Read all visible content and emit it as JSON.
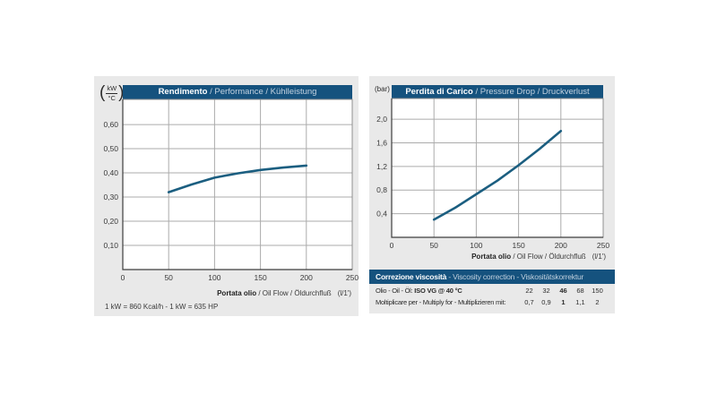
{
  "colors": {
    "accent_blue": "#15527e",
    "curve": "#1b5e80",
    "panel_bg": "#e9e9e9",
    "grid": "#ababab",
    "axis": "#3d3d3d",
    "frame": "#909090",
    "title_secondary": "#c3d2e0"
  },
  "left_panel": {
    "y_unit": {
      "open": "(",
      "num": "kW",
      "den": "°C",
      "close": ")"
    },
    "title_bold": "Rendimento",
    "title_rest": " / Performance / Kühlleistung",
    "xlabel_bold": "Portata olio",
    "xlabel_rest": " / Oil Flow / Öldurchfluß",
    "xlabel_unit": "(l/1')",
    "footnote": "1 kW = 860 Kcal/h - 1 kW = 635 HP"
  },
  "right_panel": {
    "y_unit": "(bar)",
    "title_bold": "Perdita di Carico",
    "title_rest": " / Pressure Drop / Druckverlust",
    "xlabel_bold": "Portata olio",
    "xlabel_rest": " / Oil Flow / Öldurchfluß",
    "xlabel_unit": "(l/1')"
  },
  "viscosity_table": {
    "header_bold": "Correzione viscosità",
    "header_rest": " - Viscosity correction - Viskositätskorrektur",
    "row1_label": "Olio - Oil - Öl: ",
    "row1_label_bold": "ISO VG @ 40 °C",
    "row1_values": [
      "22",
      "32",
      "46",
      "68",
      "150"
    ],
    "row1_bold_value": "46",
    "row2_label": "Moltiplicare per - Multiply for - Multiplizieren mit:",
    "row2_values": [
      "0,7",
      "0,9",
      "1",
      "1,1",
      "2"
    ],
    "row2_bold_value": "1"
  },
  "chart_data": [
    {
      "type": "line",
      "title": "Rendimento / Performance / Kühlleistung",
      "ylabel": "kW/°C",
      "xlabel": "Portata olio / Oil Flow / Öldurchfluß (l/1')",
      "xlim": [
        0,
        250
      ],
      "ylim": [
        0,
        0.704
      ],
      "grid": true,
      "x_ticks": [
        {
          "v": 0,
          "label": "0"
        },
        {
          "v": 50,
          "label": "50"
        },
        {
          "v": 100,
          "label": "100"
        },
        {
          "v": 150,
          "label": "150"
        },
        {
          "v": 200,
          "label": "200"
        },
        {
          "v": 250,
          "label": "250"
        }
      ],
      "y_ticks": [
        {
          "v": 0.1,
          "label": "0,10"
        },
        {
          "v": 0.2,
          "label": "0,20"
        },
        {
          "v": 0.3,
          "label": "0,30"
        },
        {
          "v": 0.4,
          "label": "0,40"
        },
        {
          "v": 0.5,
          "label": "0,50"
        },
        {
          "v": 0.6,
          "label": "0,60"
        }
      ],
      "series": [
        {
          "name": "cooling-performance",
          "points": [
            [
              50,
              0.32
            ],
            [
              75,
              0.352
            ],
            [
              100,
              0.38
            ],
            [
              125,
              0.398
            ],
            [
              150,
              0.412
            ],
            [
              175,
              0.422
            ],
            [
              200,
              0.43
            ]
          ]
        }
      ]
    },
    {
      "type": "line",
      "title": "Perdita di Carico / Pressure Drop / Druckverlust",
      "ylabel": "bar",
      "xlabel": "Portata olio / Oil Flow / Öldurchfluß (l/1')",
      "xlim": [
        0,
        250
      ],
      "ylim": [
        0,
        2.35
      ],
      "grid": true,
      "x_ticks": [
        {
          "v": 0,
          "label": "0"
        },
        {
          "v": 50,
          "label": "50"
        },
        {
          "v": 100,
          "label": "100"
        },
        {
          "v": 150,
          "label": "150"
        },
        {
          "v": 200,
          "label": "200"
        },
        {
          "v": 250,
          "label": "250"
        }
      ],
      "y_ticks": [
        {
          "v": 0.4,
          "label": "0,4"
        },
        {
          "v": 0.8,
          "label": "0,8"
        },
        {
          "v": 1.2,
          "label": "1,2"
        },
        {
          "v": 1.6,
          "label": "1,6"
        },
        {
          "v": 2.0,
          "label": "2,0"
        }
      ],
      "series": [
        {
          "name": "pressure-drop",
          "points": [
            [
              50,
              0.3
            ],
            [
              75,
              0.5
            ],
            [
              100,
              0.73
            ],
            [
              125,
              0.96
            ],
            [
              150,
              1.22
            ],
            [
              175,
              1.5
            ],
            [
              200,
              1.8
            ]
          ]
        }
      ]
    }
  ]
}
